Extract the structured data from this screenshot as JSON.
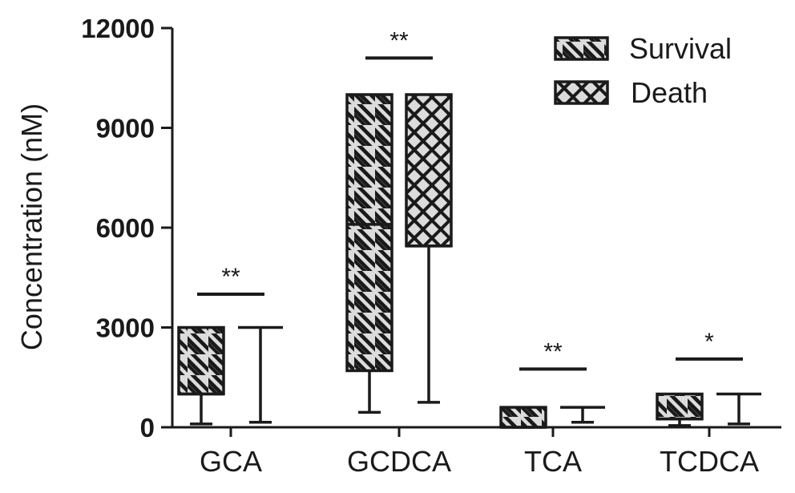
{
  "chart_data": {
    "type": "box",
    "ylabel": "Concentration (nM)",
    "xlabel": "",
    "ylim": [
      0,
      12000
    ],
    "yticks": [
      0,
      3000,
      6000,
      9000,
      12000
    ],
    "tick_labels": [
      "0",
      "3000",
      "6000",
      "9000",
      "12000"
    ],
    "categories": [
      "GCA",
      "GCDCA",
      "TCA",
      "TCDCA"
    ],
    "legend_position": "top-right",
    "series": [
      {
        "name": "Survival",
        "pattern": "diagonal-hatch",
        "color": "#d9d9d9",
        "boxes": [
          {
            "min": 100,
            "q1": 1000,
            "median": 1000,
            "q3": 3000,
            "max": 3000
          },
          {
            "min": 450,
            "q1": 1700,
            "median": 6100,
            "q3": 10000,
            "max": 10000
          },
          {
            "min": 0,
            "q1": 0,
            "median": 0,
            "q3": 600,
            "max": 600
          },
          {
            "min": 50,
            "q1": 250,
            "median": 250,
            "q3": 1000,
            "max": 1000
          }
        ]
      },
      {
        "name": "Death",
        "pattern": "crosshatch",
        "color": "#d9d9d9",
        "boxes": [
          {
            "min": 150,
            "q1": 3000,
            "median": 3000,
            "q3": 3000,
            "max": 3000
          },
          {
            "min": 750,
            "q1": 5450,
            "median": 5450,
            "q3": 10000,
            "max": 10000
          },
          {
            "min": 150,
            "q1": 600,
            "median": 600,
            "q3": 600,
            "max": 600
          },
          {
            "min": 100,
            "q1": 1000,
            "median": 1000,
            "q3": 1000,
            "max": 1000
          }
        ]
      }
    ],
    "significance": [
      {
        "category": "GCA",
        "label": "**",
        "y": 4000
      },
      {
        "category": "GCDCA",
        "label": "**",
        "y": 11100
      },
      {
        "category": "TCA",
        "label": "**",
        "y": 1750
      },
      {
        "category": "TCDCA",
        "label": "*",
        "y": 2050
      }
    ]
  }
}
